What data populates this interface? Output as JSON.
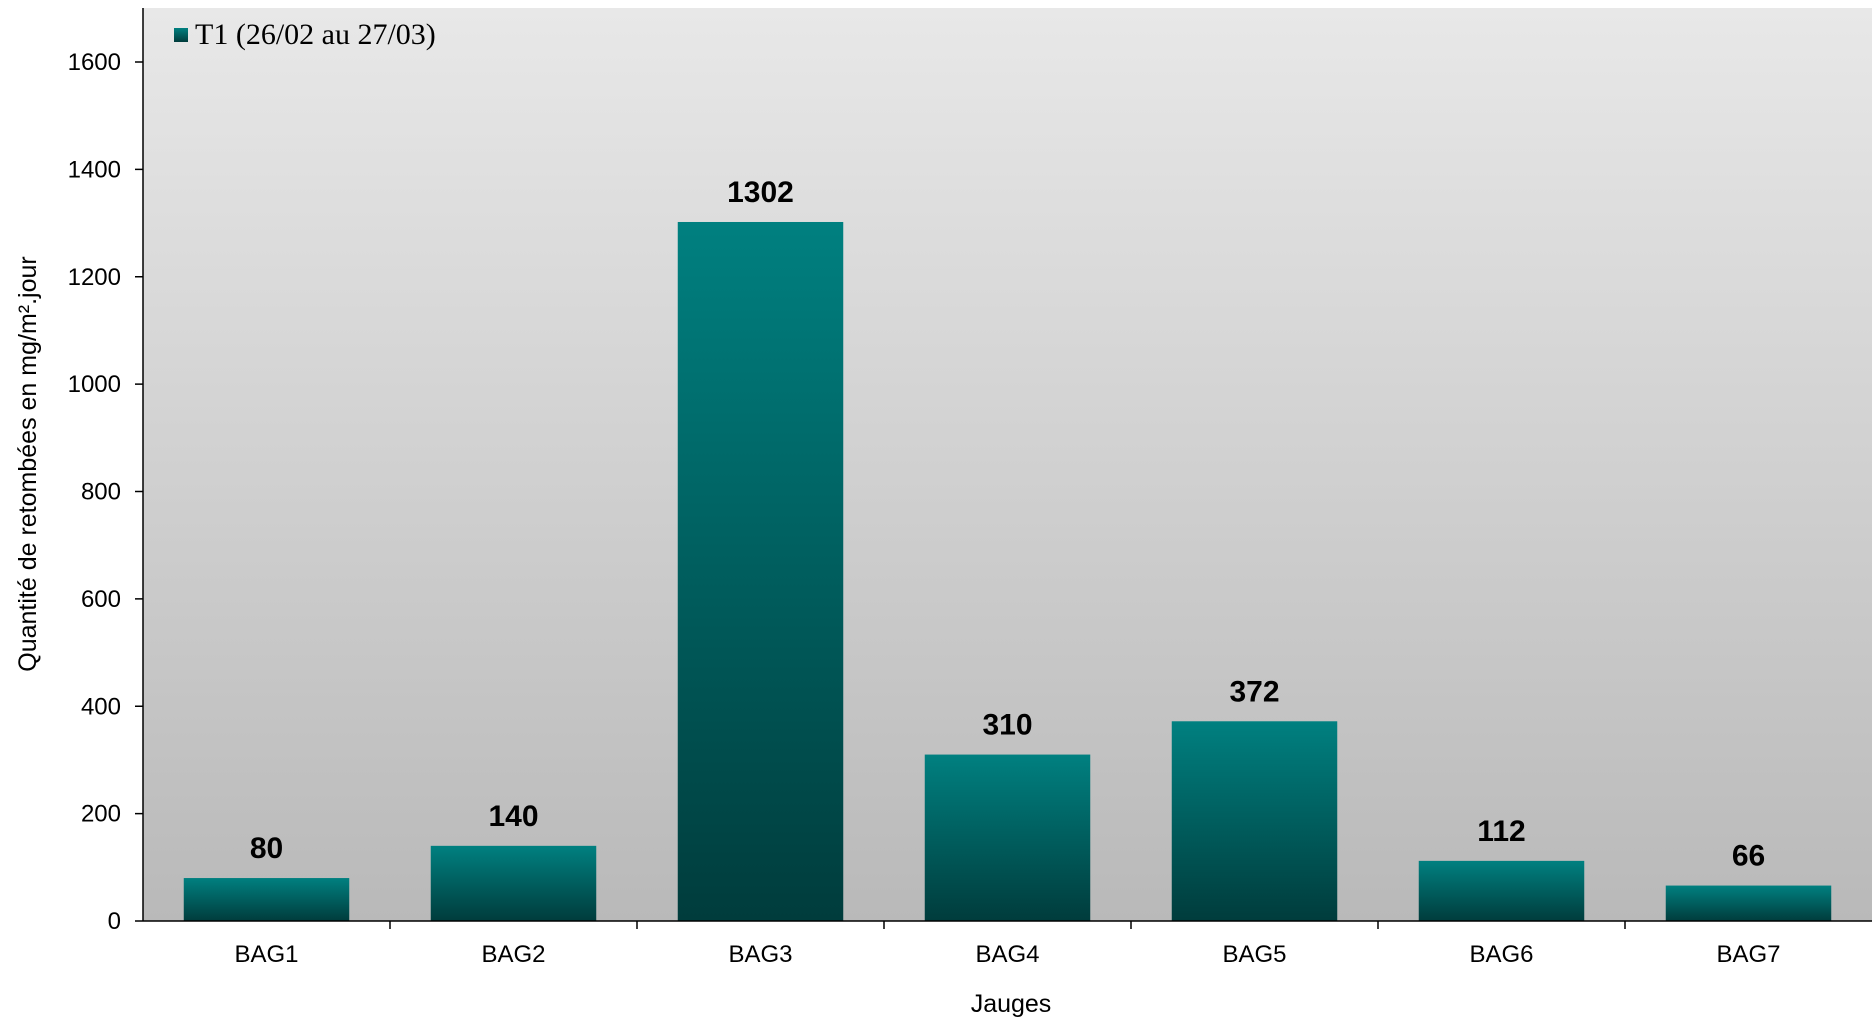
{
  "chart_data": {
    "type": "bar",
    "categories": [
      "BAG1",
      "BAG2",
      "BAG3",
      "BAG4",
      "BAG5",
      "BAG6",
      "BAG7"
    ],
    "series": [
      {
        "name": "T1 (26/02 au 27/03)",
        "values": [
          80,
          140,
          1302,
          310,
          372,
          112,
          66
        ]
      }
    ],
    "xlabel": "Jauges",
    "ylabel": "Quantité de retombées en mg/m².jour",
    "ylim": [
      0,
      1700
    ],
    "yticks": [
      0,
      200,
      400,
      600,
      800,
      1000,
      1200,
      1400,
      1600
    ],
    "data_labels": true,
    "legend_position": "top-left",
    "grid": false,
    "colors": {
      "bar_top": "#008080",
      "bar_bottom": "#003c3c",
      "plot_bg_top": "#e8e8e8",
      "plot_bg_bottom": "#b9b9b9"
    }
  }
}
